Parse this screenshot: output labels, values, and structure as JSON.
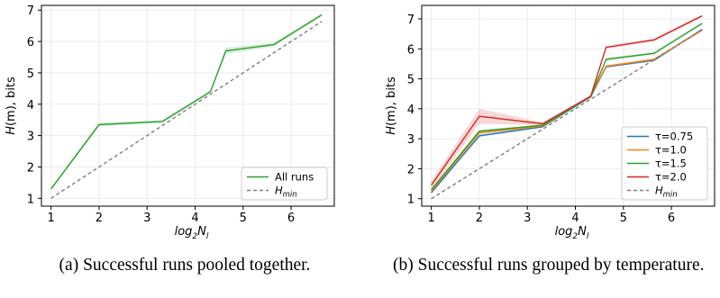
{
  "chart_data": [
    {
      "type": "line",
      "xlabel_base": "log",
      "xlabel_sub": "2",
      "xlabel_main": "N",
      "xlabel_sub2": "l",
      "ylabel_italic": "H",
      "ylabel_paren": "(m)",
      "ylabel_rest": ", bits",
      "xlim": [
        0.8,
        6.9
      ],
      "ylim": [
        0.75,
        7.15
      ],
      "xticks": [
        1,
        2,
        3,
        4,
        5,
        6
      ],
      "yticks": [
        1,
        2,
        3,
        4,
        5,
        6,
        7
      ],
      "grid": true,
      "legend_position": "bottom-right",
      "series": [
        {
          "name": "All runs",
          "color": "#2ca02c",
          "dash": "",
          "x": [
            1,
            2,
            3.32,
            4.32,
            4.64,
            5.64,
            6.64
          ],
          "y": [
            1.3,
            3.35,
            3.45,
            4.4,
            5.7,
            5.9,
            6.85
          ],
          "band": [
            0.04,
            0.06,
            0.04,
            0.04,
            0.1,
            0.06,
            0.04
          ],
          "band_color": "#2ca02c"
        },
        {
          "name": "H",
          "name_sub": "min",
          "color": "#7f7f7f",
          "dash": "4,3",
          "x": [
            1,
            6.64
          ],
          "y": [
            1,
            6.64
          ]
        }
      ]
    },
    {
      "type": "line",
      "xlabel_base": "log",
      "xlabel_sub": "2",
      "xlabel_main": "N",
      "xlabel_sub2": "l",
      "ylabel_italic": "H",
      "ylabel_paren": "(m)",
      "ylabel_rest": ", bits",
      "xlim": [
        0.8,
        6.9
      ],
      "ylim": [
        0.75,
        7.45
      ],
      "xticks": [
        1,
        2,
        3,
        4,
        5,
        6
      ],
      "yticks": [
        1,
        2,
        3,
        4,
        5,
        6,
        7
      ],
      "grid": true,
      "legend_position": "bottom-right",
      "series": [
        {
          "name": "τ=0.75",
          "color": "#1f77b4",
          "dash": "",
          "x": [
            1,
            2,
            3.32,
            4.32,
            4.64,
            5.64,
            6.64
          ],
          "y": [
            1.2,
            3.1,
            3.4,
            4.4,
            5.4,
            5.62,
            6.65
          ],
          "band": [
            0.03,
            0.05,
            0.03,
            0.03,
            0.04,
            0.04,
            0.03
          ],
          "band_color": "#1f77b4"
        },
        {
          "name": "τ=1.0",
          "color": "#ff7f0e",
          "dash": "",
          "x": [
            1,
            2,
            3.32,
            4.32,
            4.64,
            5.64,
            6.64
          ],
          "y": [
            1.25,
            3.2,
            3.42,
            4.42,
            5.42,
            5.65,
            6.62
          ],
          "band": [
            0.03,
            0.05,
            0.03,
            0.03,
            0.04,
            0.04,
            0.03
          ],
          "band_color": "#ff7f0e"
        },
        {
          "name": "τ=1.5",
          "color": "#2ca02c",
          "dash": "",
          "x": [
            1,
            2,
            3.32,
            4.32,
            4.64,
            5.64,
            6.64
          ],
          "y": [
            1.3,
            3.25,
            3.45,
            4.4,
            5.65,
            5.85,
            6.85
          ],
          "band": [
            0.03,
            0.05,
            0.03,
            0.03,
            0.05,
            0.04,
            0.03
          ],
          "band_color": "#2ca02c"
        },
        {
          "name": "τ=2.0",
          "color": "#d62728",
          "dash": "",
          "x": [
            1,
            2,
            3.32,
            4.32,
            4.64,
            5.64,
            6.64
          ],
          "y": [
            1.45,
            3.75,
            3.5,
            4.42,
            6.05,
            6.3,
            7.1
          ],
          "band": [
            0.15,
            0.25,
            0.05,
            0.04,
            0.05,
            0.05,
            0.04
          ],
          "band_color": "#d62728"
        },
        {
          "name": "H",
          "name_sub": "min",
          "color": "#7f7f7f",
          "dash": "4,3",
          "x": [
            1,
            6.64
          ],
          "y": [
            1,
            6.64
          ]
        }
      ]
    }
  ],
  "captions": {
    "a": "(a) Successful runs pooled together.",
    "b": "(b) Successful runs grouped by temperature."
  }
}
